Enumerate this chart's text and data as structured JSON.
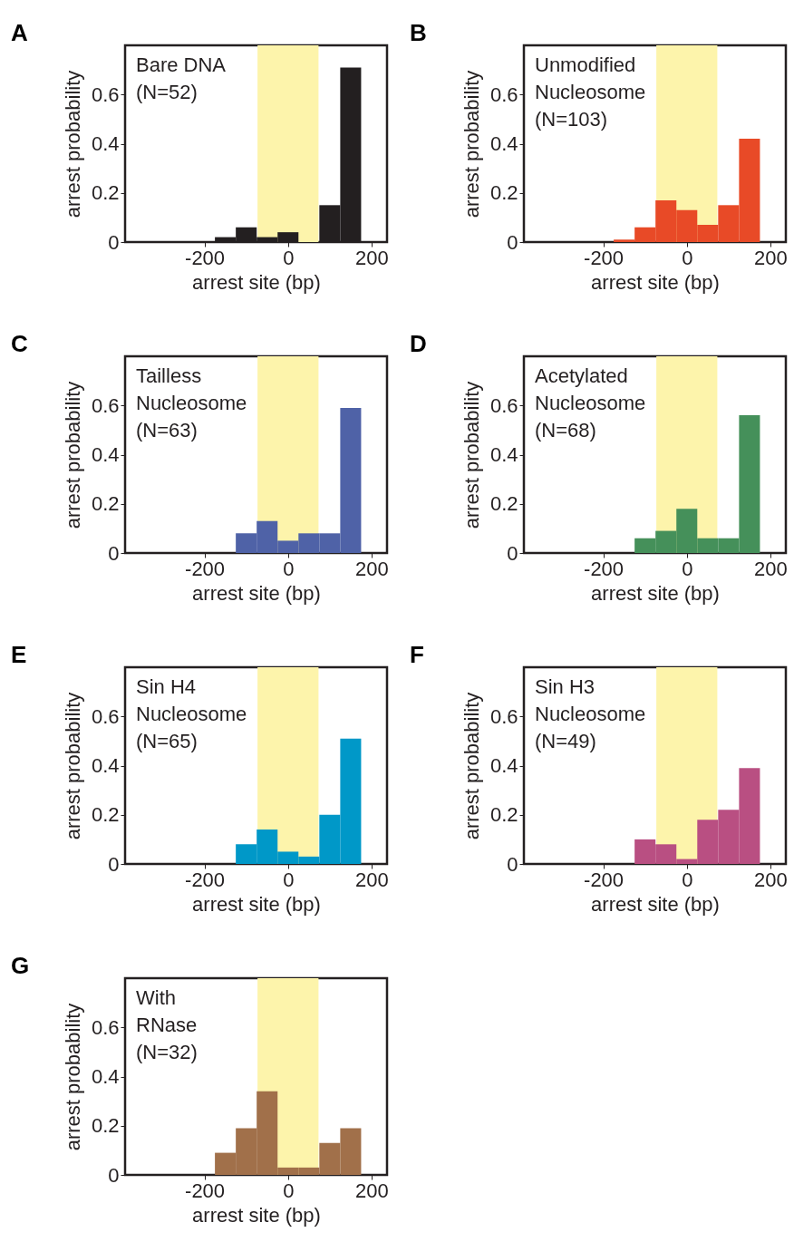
{
  "chart_data": [
    {
      "type": "histogram",
      "title": "A",
      "xlabel": "arrest site (bp)",
      "ylabel": "arrest probability",
      "bins": [
        -175,
        -125,
        -75,
        -25,
        25,
        75,
        125,
        175
      ],
      "values": [
        0.02,
        0.06,
        0.02,
        0.04,
        0,
        0.15,
        0.71
      ],
      "color": "#231f20",
      "xlim": [
        -390,
        237
      ],
      "xticks": [
        -200,
        0,
        200
      ],
      "ylim": [
        0,
        0.8
      ],
      "yticks": [
        0,
        0.2,
        0.4,
        0.6
      ],
      "bands": [
        {
          "axis": "x",
          "from": -73,
          "to": 73,
          "color": "#fdf4ab"
        }
      ],
      "annotations": [
        "Bare DNA",
        "(N=52)"
      ]
    },
    {
      "type": "histogram",
      "title": "B",
      "xlabel": "arrest site (bp)",
      "ylabel": "arrest probability",
      "bins": [
        -175,
        -125,
        -75,
        -25,
        25,
        75,
        125,
        175
      ],
      "values": [
        0.01,
        0.06,
        0.17,
        0.13,
        0.07,
        0.15,
        0.42
      ],
      "color": "#e84a27",
      "xlim": [
        -390,
        237
      ],
      "xticks": [
        -200,
        0,
        200
      ],
      "ylim": [
        0,
        0.8
      ],
      "yticks": [
        0,
        0.2,
        0.4,
        0.6
      ],
      "bands": [
        {
          "axis": "x",
          "from": -73,
          "to": 73,
          "color": "#fdf4ab"
        }
      ],
      "annotations": [
        "Unmodified",
        "Nucleosome",
        "(N=103)"
      ]
    },
    {
      "type": "histogram",
      "title": "C",
      "xlabel": "arrest site (bp)",
      "ylabel": "arrest probability",
      "bins": [
        -125,
        -75,
        -25,
        25,
        75,
        125,
        175
      ],
      "values": [
        0.08,
        0.13,
        0.05,
        0.08,
        0.08,
        0.59
      ],
      "color": "#4f62a7",
      "xlim": [
        -390,
        237
      ],
      "xticks": [
        -200,
        0,
        200
      ],
      "ylim": [
        0,
        0.8
      ],
      "yticks": [
        0,
        0.2,
        0.4,
        0.6
      ],
      "bands": [
        {
          "axis": "x",
          "from": -73,
          "to": 73,
          "color": "#fdf4ab"
        }
      ],
      "annotations": [
        "Tailless",
        "Nucleosome",
        "(N=63)"
      ]
    },
    {
      "type": "histogram",
      "title": "D",
      "xlabel": "arrest site (bp)",
      "ylabel": "arrest probability",
      "bins": [
        -125,
        -75,
        -25,
        25,
        75,
        125,
        175
      ],
      "values": [
        0.06,
        0.09,
        0.18,
        0.06,
        0.06,
        0.56
      ],
      "color": "#45905a",
      "xlim": [
        -390,
        237
      ],
      "xticks": [
        -200,
        0,
        200
      ],
      "ylim": [
        0,
        0.8
      ],
      "yticks": [
        0,
        0.2,
        0.4,
        0.6
      ],
      "bands": [
        {
          "axis": "x",
          "from": -73,
          "to": 73,
          "color": "#fdf4ab"
        }
      ],
      "annotations": [
        "Acetylated",
        "Nucleosome",
        "(N=68)"
      ]
    },
    {
      "type": "histogram",
      "title": "E",
      "xlabel": "arrest site (bp)",
      "ylabel": "arrest probability",
      "bins": [
        -125,
        -75,
        -25,
        25,
        75,
        125,
        175
      ],
      "values": [
        0.08,
        0.14,
        0.05,
        0.03,
        0.2,
        0.51
      ],
      "color": "#0098c8",
      "xlim": [
        -390,
        237
      ],
      "xticks": [
        -200,
        0,
        200
      ],
      "ylim": [
        0,
        0.8
      ],
      "yticks": [
        0,
        0.2,
        0.4,
        0.6
      ],
      "bands": [
        {
          "axis": "x",
          "from": -73,
          "to": 73,
          "color": "#fdf4ab"
        }
      ],
      "annotations": [
        "Sin H4",
        "Nucleosome",
        "(N=65)"
      ]
    },
    {
      "type": "histogram",
      "title": "F",
      "xlabel": "arrest site (bp)",
      "ylabel": "arrest probability",
      "bins": [
        -125,
        -75,
        -25,
        25,
        75,
        125,
        175
      ],
      "values": [
        0.1,
        0.08,
        0.02,
        0.18,
        0.22,
        0.39
      ],
      "color": "#b94f82",
      "xlim": [
        -390,
        237
      ],
      "xticks": [
        -200,
        0,
        200
      ],
      "ylim": [
        0,
        0.8
      ],
      "yticks": [
        0,
        0.2,
        0.4,
        0.6
      ],
      "bands": [
        {
          "axis": "x",
          "from": -73,
          "to": 73,
          "color": "#fdf4ab"
        }
      ],
      "annotations": [
        "Sin H3",
        "Nucleosome",
        "(N=49)"
      ]
    },
    {
      "type": "histogram",
      "title": "G",
      "xlabel": "arrest site (bp)",
      "ylabel": "arrest probability",
      "bins": [
        -175,
        -125,
        -75,
        -25,
        25,
        75,
        125,
        175
      ],
      "values": [
        0.09,
        0.19,
        0.34,
        0.03,
        0.03,
        0.13,
        0.19
      ],
      "color": "#a1704a",
      "xlim": [
        -390,
        237
      ],
      "xticks": [
        -200,
        0,
        200
      ],
      "ylim": [
        0,
        0.8
      ],
      "yticks": [
        0,
        0.2,
        0.4,
        0.6
      ],
      "bands": [
        {
          "axis": "x",
          "from": -73,
          "to": 73,
          "color": "#fdf4ab"
        }
      ],
      "annotations": [
        "With",
        "RNase",
        "(N=32)"
      ]
    }
  ]
}
